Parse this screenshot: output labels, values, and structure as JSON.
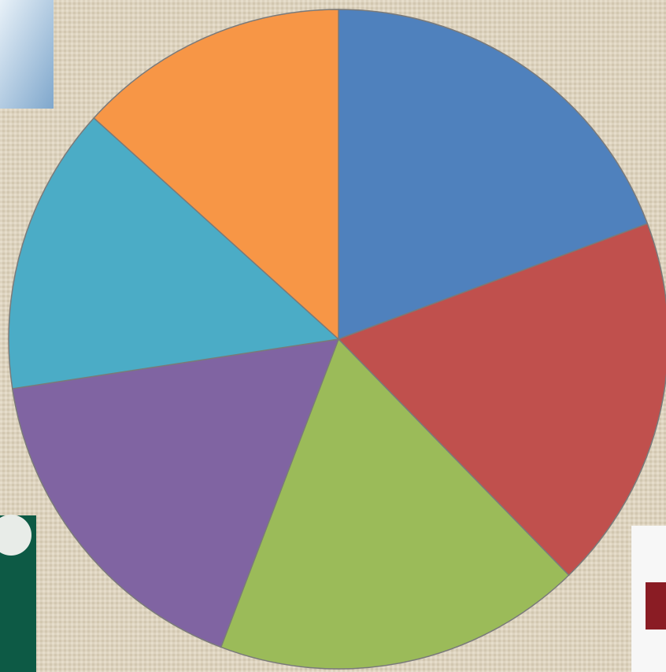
{
  "chart_data": {
    "type": "pie",
    "values": [
      19.3,
      18.4,
      18.1,
      16.8,
      14.1,
      13.3
    ],
    "colors": [
      "#4f81bd",
      "#c0504d",
      "#9bbb59",
      "#8064a2",
      "#4bacc6",
      "#f79646"
    ]
  }
}
